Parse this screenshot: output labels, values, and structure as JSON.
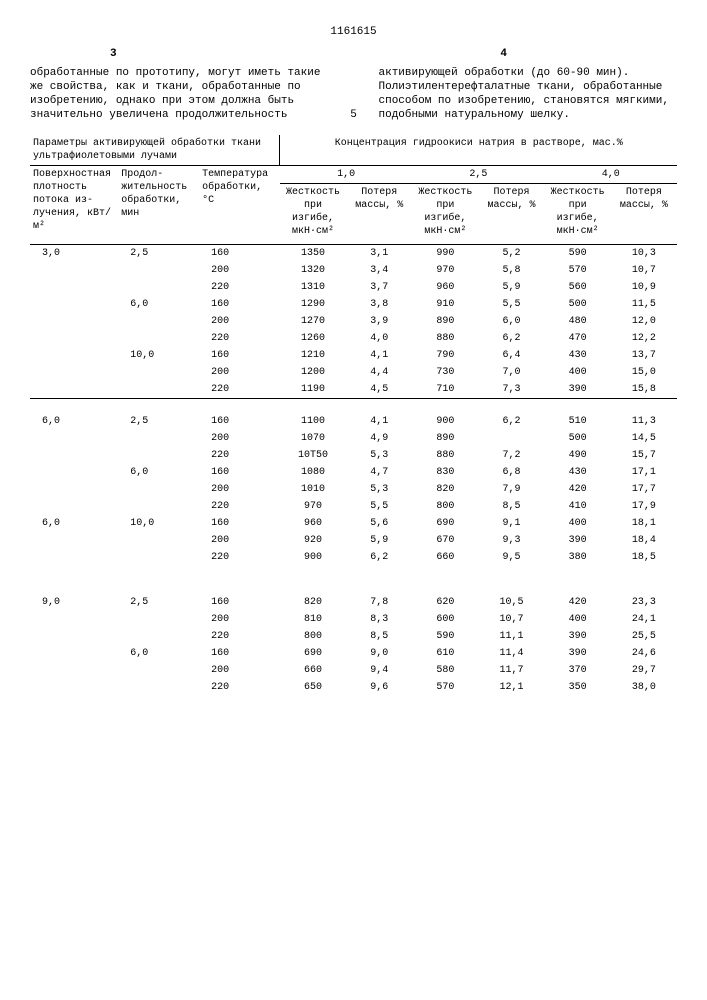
{
  "doc_num": "1161615",
  "page_left": "3",
  "page_right": "4",
  "intro_left": "обработанные по прототипу, могут иметь такие же свойства, как и тка­ни, обработанные по изобретению, однако при этом должна быть значи­тельно увеличена продолжительность",
  "intro_right": "активирующей обработки (до 60-90 мин). Полиэтилентерефталатные ткани, обра­ботанные способом по изобретению, становятся мягкими, подобными нату­ральному шелку.",
  "five": "5",
  "hdr_params": "Параметры активирующей обработ­ки ткани ультрафиолетовыми лу­чами",
  "hdr_conc": "Концентрация гидроокиси натрия в растворе, мас.%",
  "conc_10": "1,0",
  "conc_25": "2,5",
  "conc_40": "4,0",
  "col_p1": "Поверхност­ная плотность потока из­лучения, кВт/м²",
  "col_p2": "Продол­житель­ность об­работки, мин",
  "col_p3": "Темпера­тура об­работки, °С",
  "col_stiff": "Жест­кость при изгибе, мкН·см²",
  "col_loss": "Поте­ря мас­сы, %",
  "rows": [
    {
      "g": 0,
      "p1": "3,0",
      "p2": "2,5",
      "p3": "160",
      "s1": "1350",
      "l1": "3,1",
      "s2": "990",
      "l2": "5,2",
      "s3": "590",
      "l3": "10,3"
    },
    {
      "g": 0,
      "p1": "",
      "p2": "",
      "p3": "200",
      "s1": "1320",
      "l1": "3,4",
      "s2": "970",
      "l2": "5,8",
      "s3": "570",
      "l3": "10,7"
    },
    {
      "g": 0,
      "p1": "",
      "p2": "",
      "p3": "220",
      "s1": "1310",
      "l1": "3,7",
      "s2": "960",
      "l2": "5,9",
      "s3": "560",
      "l3": "10,9"
    },
    {
      "g": 0,
      "p1": "",
      "p2": "6,0",
      "p3": "160",
      "s1": "1290",
      "l1": "3,8",
      "s2": "910",
      "l2": "5,5",
      "s3": "500",
      "l3": "11,5"
    },
    {
      "g": 0,
      "p1": "",
      "p2": "",
      "p3": "200",
      "s1": "1270",
      "l1": "3,9",
      "s2": "890",
      "l2": "6,0",
      "s3": "480",
      "l3": "12,0"
    },
    {
      "g": 0,
      "p1": "",
      "p2": "",
      "p3": "220",
      "s1": "1260",
      "l1": "4,0",
      "s2": "880",
      "l2": "6,2",
      "s3": "470",
      "l3": "12,2"
    },
    {
      "g": 0,
      "p1": "",
      "p2": "10,0",
      "p3": "160",
      "s1": "1210",
      "l1": "4,1",
      "s2": "790",
      "l2": "6,4",
      "s3": "430",
      "l3": "13,7"
    },
    {
      "g": 0,
      "p1": "",
      "p2": "",
      "p3": "200",
      "s1": "1200",
      "l1": "4,4",
      "s2": "730",
      "l2": "7,0",
      "s3": "400",
      "l3": "15,0"
    },
    {
      "g": 0,
      "p1": "",
      "p2": "",
      "p3": "220",
      "s1": "1190",
      "l1": "4,5",
      "s2": "710",
      "l2": "7,3",
      "s3": "390",
      "l3": "15,8"
    },
    {
      "g": 1,
      "p1": "6,0",
      "p2": "2,5",
      "p3": "160",
      "s1": "1100",
      "l1": "4,1",
      "s2": "900",
      "l2": "6,2",
      "s3": "510",
      "l3": "11,3"
    },
    {
      "g": 1,
      "p1": "",
      "p2": "",
      "p3": "200",
      "s1": "1070",
      "l1": "4,9",
      "s2": "890",
      "l2": "",
      "s3": "500",
      "l3": "14,5"
    },
    {
      "g": 1,
      "p1": "",
      "p2": "",
      "p3": "220",
      "s1": "10Т50",
      "l1": "5,3",
      "s2": "880",
      "l2": "7,2",
      "s3": "490",
      "l3": "15,7"
    },
    {
      "g": 1,
      "p1": "",
      "p2": "6,0",
      "p3": "160",
      "s1": "1080",
      "l1": "4,7",
      "s2": "830",
      "l2": "6,8",
      "s3": "430",
      "l3": "17,1"
    },
    {
      "g": 1,
      "p1": "",
      "p2": "",
      "p3": "200",
      "s1": "1010",
      "l1": "5,3",
      "s2": "820",
      "l2": "7,9",
      "s3": "420",
      "l3": "17,7"
    },
    {
      "g": 1,
      "p1": "",
      "p2": "",
      "p3": "220",
      "s1": "970",
      "l1": "5,5",
      "s2": "800",
      "l2": "8,5",
      "s3": "410",
      "l3": "17,9"
    },
    {
      "g": 1,
      "p1": "6,0",
      "p2": "10,0",
      "p3": "160",
      "s1": "960",
      "l1": "5,6",
      "s2": "690",
      "l2": "9,1",
      "s3": "400",
      "l3": "18,1"
    },
    {
      "g": 1,
      "p1": "",
      "p2": "",
      "p3": "200",
      "s1": "920",
      "l1": "5,9",
      "s2": "670",
      "l2": "9,3",
      "s3": "390",
      "l3": "18,4"
    },
    {
      "g": 1,
      "p1": "",
      "p2": "",
      "p3": "220",
      "s1": "900",
      "l1": "6,2",
      "s2": "660",
      "l2": "9,5",
      "s3": "380",
      "l3": "18,5"
    },
    {
      "g": 2,
      "p1": "9,0",
      "p2": "2,5",
      "p3": "160",
      "s1": "820",
      "l1": "7,8",
      "s2": "620",
      "l2": "10,5",
      "s3": "420",
      "l3": "23,3"
    },
    {
      "g": 2,
      "p1": "",
      "p2": "",
      "p3": "200",
      "s1": "810",
      "l1": "8,3",
      "s2": "600",
      "l2": "10,7",
      "s3": "400",
      "l3": "24,1"
    },
    {
      "g": 2,
      "p1": "",
      "p2": "",
      "p3": "220",
      "s1": "800",
      "l1": "8,5",
      "s2": "590",
      "l2": "11,1",
      "s3": "390",
      "l3": "25,5"
    },
    {
      "g": 2,
      "p1": "",
      "p2": "6,0",
      "p3": "160",
      "s1": "690",
      "l1": "9,0",
      "s2": "610",
      "l2": "11,4",
      "s3": "390",
      "l3": "24,6"
    },
    {
      "g": 2,
      "p1": "",
      "p2": "",
      "p3": "200",
      "s1": "660",
      "l1": "9,4",
      "s2": "580",
      "l2": "11,7",
      "s3": "370",
      "l3": "29,7"
    },
    {
      "g": 2,
      "p1": "",
      "p2": "",
      "p3": "220",
      "s1": "650",
      "l1": "9,6",
      "s2": "570",
      "l2": "12,1",
      "s3": "350",
      "l3": "38,0"
    }
  ]
}
